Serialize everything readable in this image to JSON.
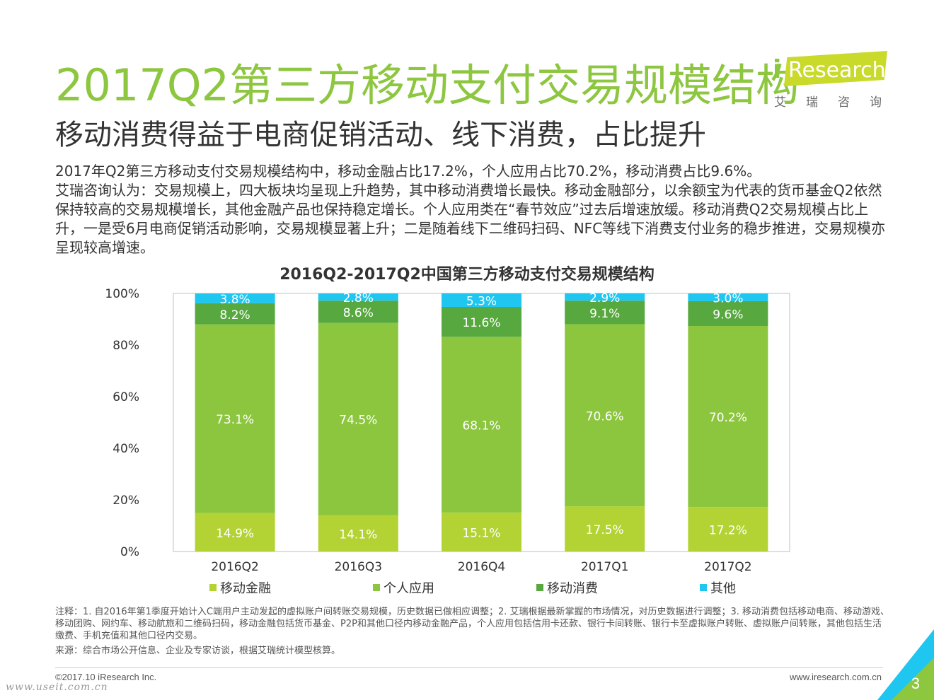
{
  "header": {
    "title": "2017Q2第三方移动支付交易规模结构",
    "subtitle": "移动消费得益于电商促销活动、线下消费，占比提升"
  },
  "logo": {
    "i": "i",
    "text": "Research",
    "cn": "艾瑞咨询"
  },
  "body": {
    "line1": "2017年Q2第三方移动支付交易规模结构中，移动金融占比17.2%，个人应用占比70.2%，移动消费占比9.6%。",
    "line2": "艾瑞咨询认为：交易规模上，四大板块均呈现上升趋势，其中移动消费增长最快。移动金融部分，以余额宝为代表的货币基金Q2依然保持较高的交易规模增长，其他金融产品也保持稳定增长。个人应用类在“春节效应”过去后增速放缓。移动消费Q2交易规模占比上升，一是受6月电商促销活动影响，交易规模显著上升；二是随着线下二维码扫码、NFC等线下消费支付业务的稳步推进，交易规模亦呈现较高增速。"
  },
  "chart_data": {
    "type": "bar",
    "stacked": true,
    "title": "2016Q2-2017Q2中国第三方移动支付交易规模结构",
    "categories": [
      "2016Q2",
      "2016Q3",
      "2016Q4",
      "2017Q1",
      "2017Q2"
    ],
    "series": [
      {
        "name": "移动金融",
        "color": "#b3d334",
        "values": [
          14.9,
          14.1,
          15.1,
          17.5,
          17.2
        ]
      },
      {
        "name": "个人应用",
        "color": "#8cc63f",
        "values": [
          73.1,
          74.5,
          68.1,
          70.6,
          70.2
        ]
      },
      {
        "name": "移动消费",
        "color": "#57a83f",
        "values": [
          8.2,
          8.6,
          11.6,
          9.1,
          9.6
        ]
      },
      {
        "name": "其他",
        "color": "#1ec6f0",
        "values": [
          3.8,
          2.8,
          5.3,
          2.9,
          3.0
        ]
      }
    ],
    "yticks": [
      "0%",
      "20%",
      "40%",
      "60%",
      "80%",
      "100%"
    ],
    "ylim": [
      0,
      100
    ],
    "value_suffix": "%"
  },
  "notes": {
    "note": "注释：1. 自2016年第1季度开始计入C端用户主动发起的虚拟账户间转账交易规模，历史数据已做相应调整；2. 艾瑞根据最新掌握的市场情况，对历史数据进行调整；3. 移动消费包括移动电商、移动游戏、移动团购、网约车、移动航旅和二维码扫码，移动金融包括货币基金、P2P和其他口径内移动金融产品，个人应用包括信用卡还款、银行卡间转账、银行卡至虚拟账户转账、虚拟账户间转账，其他包括生活缴费、手机充值和其他口径内交易。",
    "source": "来源：综合市场公开信息、企业及专家访谈，根据艾瑞统计模型核算。"
  },
  "footer": {
    "copyright": "©2017.10 iResearch Inc.",
    "website": "www.iresearch.com.cn",
    "watermark": "www.useit.com.cn",
    "page_number": "3"
  },
  "colors": {
    "title_green": "#8dc63f",
    "corner_blue": "#1ec6f0",
    "corner_green": "#8dc63f"
  }
}
